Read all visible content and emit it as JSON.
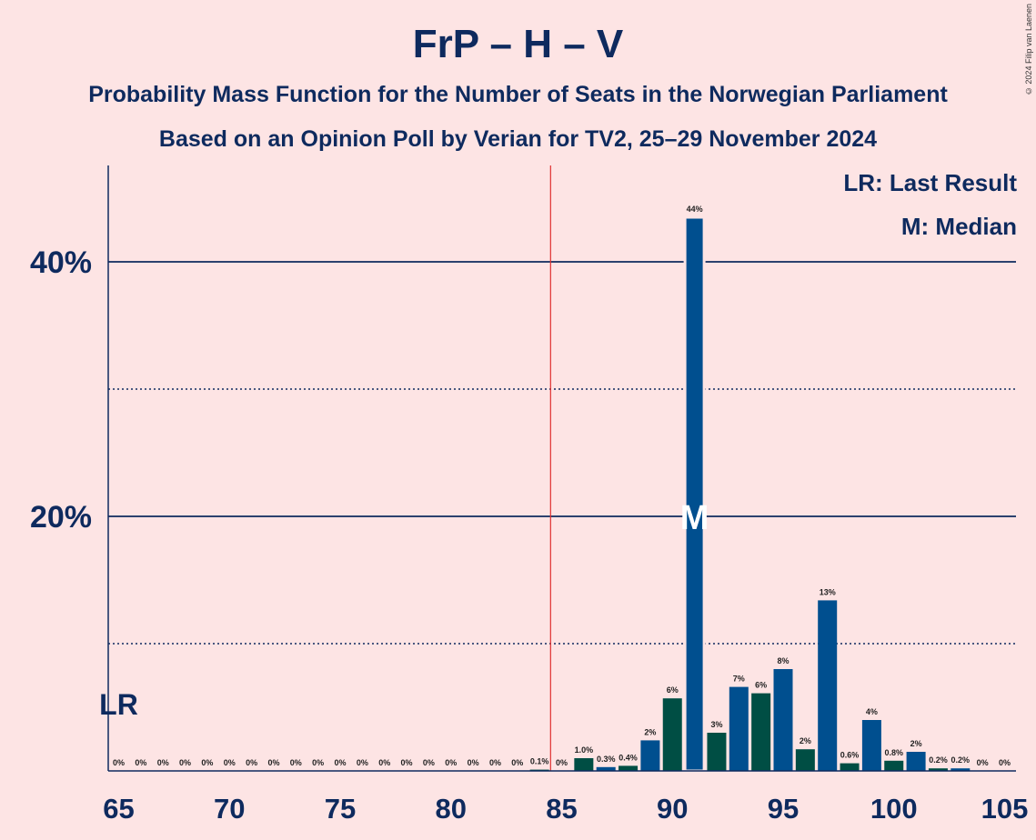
{
  "header": {
    "title": "FrP – H – V",
    "subtitle_1": "Probability Mass Function for the Number of Seats in the Norwegian Parliament",
    "subtitle_2": "Based on an Opinion Poll by Verian for TV2, 25–29 November 2024",
    "copyright": "© 2024 Filip van Laenen"
  },
  "legend": {
    "last_result": "LR: Last Result",
    "median": "M: Median"
  },
  "colors": {
    "background": "#fde4e4",
    "text": "#0e2a5e",
    "bar_blue": "#004f8f",
    "bar_green": "#004e44",
    "majority_line": "#e03030"
  },
  "chart_data": {
    "type": "bar",
    "x": [
      65,
      66,
      67,
      68,
      69,
      70,
      71,
      72,
      73,
      74,
      75,
      76,
      77,
      78,
      79,
      80,
      81,
      82,
      83,
      84,
      85,
      86,
      87,
      88,
      89,
      90,
      91,
      92,
      93,
      94,
      95,
      96,
      97,
      98,
      99,
      100,
      101,
      102,
      103,
      104,
      105
    ],
    "values": [
      0,
      0,
      0,
      0,
      0,
      0,
      0,
      0,
      0,
      0,
      0,
      0,
      0,
      0,
      0,
      0,
      0,
      0,
      0,
      0.1,
      0,
      1.0,
      0.3,
      0.4,
      2.4,
      5.7,
      43.5,
      3.0,
      6.6,
      6.1,
      8.0,
      1.7,
      13.4,
      0.6,
      4.0,
      0.8,
      1.5,
      0.2,
      0.2,
      0,
      0
    ],
    "labels": [
      "0%",
      "0%",
      "0%",
      "0%",
      "0%",
      "0%",
      "0%",
      "0%",
      "0%",
      "0%",
      "0%",
      "0%",
      "0%",
      "0%",
      "0%",
      "0%",
      "0%",
      "0%",
      "0%",
      "0.1%",
      "0%",
      "1.0%",
      "0.3%",
      "0.4%",
      "2%",
      "6%",
      "44%",
      "3%",
      "7%",
      "6%",
      "8%",
      "2%",
      "13%",
      "0.6%",
      "4%",
      "0.8%",
      "2%",
      "0.2%",
      "0.2%",
      "0%",
      "0%"
    ],
    "xticks": [
      "65",
      "70",
      "75",
      "80",
      "85",
      "90",
      "95",
      "100",
      "105"
    ],
    "yticks": [
      "20%",
      "40%"
    ],
    "ylim": [
      0,
      47.5
    ],
    "xlim": [
      65,
      105
    ],
    "gridlines_solid": [
      20,
      40
    ],
    "gridlines_dotted": [
      10,
      30
    ],
    "last_result": 65,
    "last_result_label": "LR",
    "median": 91,
    "median_label": "M",
    "majority_line": 84.5
  }
}
